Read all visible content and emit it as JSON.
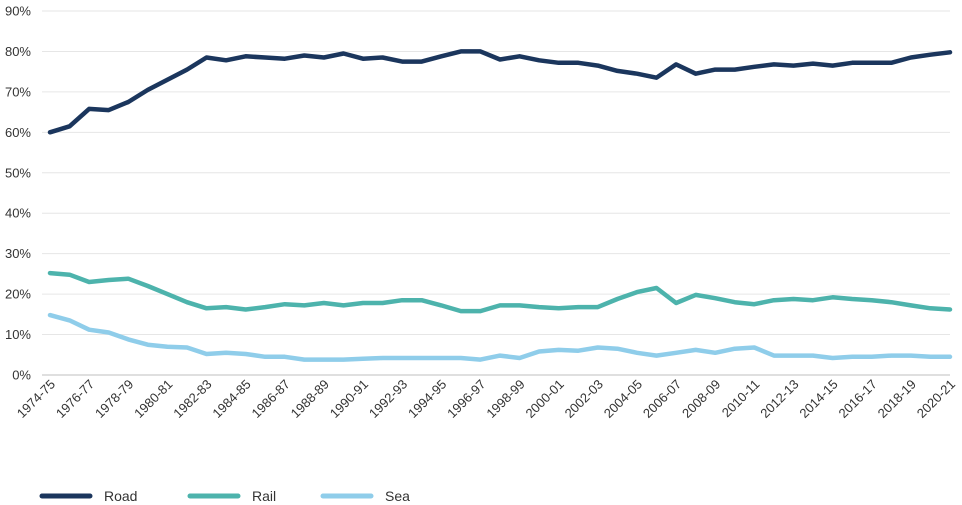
{
  "chart_data": {
    "type": "line",
    "title": "",
    "xlabel": "",
    "ylabel": "",
    "ylim": [
      0,
      90
    ],
    "yticks": [
      "0%",
      "10%",
      "20%",
      "30%",
      "40%",
      "50%",
      "60%",
      "70%",
      "80%",
      "90%"
    ],
    "grid": "horizontal",
    "legend_position": "bottom-left",
    "categories": [
      "1974-75",
      "1975-76",
      "1976-77",
      "1977-78",
      "1978-79",
      "1979-80",
      "1980-81",
      "1981-82",
      "1982-83",
      "1983-84",
      "1984-85",
      "1985-86",
      "1986-87",
      "1987-88",
      "1988-89",
      "1989-90",
      "1990-91",
      "1991-92",
      "1992-93",
      "1993-94",
      "1994-95",
      "1995-96",
      "1996-97",
      "1997-98",
      "1998-99",
      "1999-00",
      "2000-01",
      "2001-02",
      "2002-03",
      "2003-04",
      "2004-05",
      "2005-06",
      "2006-07",
      "2007-08",
      "2008-09",
      "2009-10",
      "2010-11",
      "2011-12",
      "2012-13",
      "2013-14",
      "2014-15",
      "2015-16",
      "2016-17",
      "2017-18",
      "2018-19",
      "2019-20",
      "2020-21"
    ],
    "xtick_labels": [
      "1974-75",
      "1976-77",
      "1978-79",
      "1980-81",
      "1982-83",
      "1984-85",
      "1986-87",
      "1988-89",
      "1990-91",
      "1992-93",
      "1994-95",
      "1996-97",
      "1998-99",
      "2000-01",
      "2002-03",
      "2004-05",
      "2006-07",
      "2008-09",
      "2010-11",
      "2012-13",
      "2014-15",
      "2016-17",
      "2018-19",
      "2020-21"
    ],
    "series": [
      {
        "name": "Road",
        "color": "#1b365d",
        "values": [
          60,
          61.5,
          65.8,
          65.5,
          67.5,
          70.5,
          73,
          75.5,
          78.5,
          77.8,
          78.8,
          78.5,
          78.2,
          79,
          78.5,
          79.5,
          78.2,
          78.5,
          77.5,
          77.5,
          78.8,
          80,
          80,
          78,
          78.8,
          77.8,
          77.2,
          77.2,
          76.5,
          75.2,
          74.5,
          73.5,
          76.8,
          74.5,
          75.5,
          75.5,
          76.2,
          76.8,
          76.5,
          77,
          76.5,
          77.2,
          77.2,
          77.2,
          78.5,
          79.2,
          79.8
        ]
      },
      {
        "name": "Rail",
        "color": "#4db3ac",
        "values": [
          25.2,
          24.8,
          23,
          23.5,
          23.8,
          22,
          20,
          18,
          16.5,
          16.8,
          16.2,
          16.8,
          17.5,
          17.2,
          17.8,
          17.2,
          17.8,
          17.8,
          18.5,
          18.5,
          17.2,
          15.8,
          15.8,
          17.2,
          17.2,
          16.8,
          16.5,
          16.8,
          16.8,
          18.8,
          20.5,
          21.5,
          17.8,
          19.8,
          19,
          18,
          17.5,
          18.5,
          18.8,
          18.5,
          19.2,
          18.8,
          18.5,
          18,
          17.2,
          16.5,
          16.2
        ]
      },
      {
        "name": "Sea",
        "color": "#8fcdea",
        "values": [
          14.8,
          13.5,
          11.2,
          10.5,
          8.8,
          7.5,
          7,
          6.8,
          5.2,
          5.5,
          5.2,
          4.5,
          4.5,
          3.8,
          3.8,
          3.8,
          4,
          4.2,
          4.2,
          4.2,
          4.2,
          4.2,
          3.8,
          4.8,
          4.2,
          5.8,
          6.2,
          6,
          6.8,
          6.5,
          5.5,
          4.8,
          5.5,
          6.2,
          5.5,
          6.5,
          6.8,
          4.8,
          4.8,
          4.8,
          4.2,
          4.5,
          4.5,
          4.8,
          4.8,
          4.5,
          4.5
        ]
      }
    ]
  }
}
